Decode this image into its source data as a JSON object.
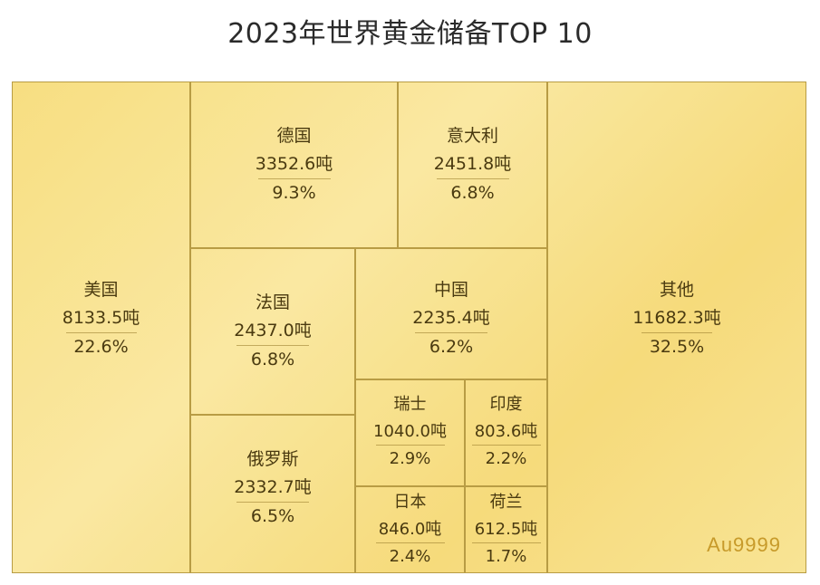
{
  "title": "2023年世界黄金储备TOP 10",
  "watermark": "Au9999",
  "colors": {
    "tile_fill": "#f7dc7a",
    "tile_border": "#b89c44",
    "label_text": "#4a3a10",
    "watermark": "#c79a2a"
  },
  "chart_data": {
    "type": "treemap",
    "title": "2023年世界黄金储备TOP 10",
    "unit": "吨",
    "items": [
      {
        "name": "美国",
        "value": 8133.5,
        "value_label": "8133.5吨",
        "percent": 22.6,
        "percent_label": "22.6%"
      },
      {
        "name": "德国",
        "value": 3352.6,
        "value_label": "3352.6吨",
        "percent": 9.3,
        "percent_label": "9.3%"
      },
      {
        "name": "意大利",
        "value": 2451.8,
        "value_label": "2451.8吨",
        "percent": 6.8,
        "percent_label": "6.8%"
      },
      {
        "name": "法国",
        "value": 2437.0,
        "value_label": "2437.0吨",
        "percent": 6.8,
        "percent_label": "6.8%"
      },
      {
        "name": "中国",
        "value": 2235.4,
        "value_label": "2235.4吨",
        "percent": 6.2,
        "percent_label": "6.2%"
      },
      {
        "name": "俄罗斯",
        "value": 2332.7,
        "value_label": "2332.7吨",
        "percent": 6.5,
        "percent_label": "6.5%"
      },
      {
        "name": "瑞士",
        "value": 1040.0,
        "value_label": "1040.0吨",
        "percent": 2.9,
        "percent_label": "2.9%"
      },
      {
        "name": "印度",
        "value": 803.6,
        "value_label": "803.6吨",
        "percent": 2.2,
        "percent_label": "2.2%"
      },
      {
        "name": "日本",
        "value": 846.0,
        "value_label": "846.0吨",
        "percent": 2.4,
        "percent_label": "2.4%"
      },
      {
        "name": "荷兰",
        "value": 612.5,
        "value_label": "612.5吨",
        "percent": 1.7,
        "percent_label": "1.7%"
      },
      {
        "name": "其他",
        "value": 11682.3,
        "value_label": "11682.3吨",
        "percent": 32.5,
        "percent_label": "32.5%"
      }
    ]
  }
}
